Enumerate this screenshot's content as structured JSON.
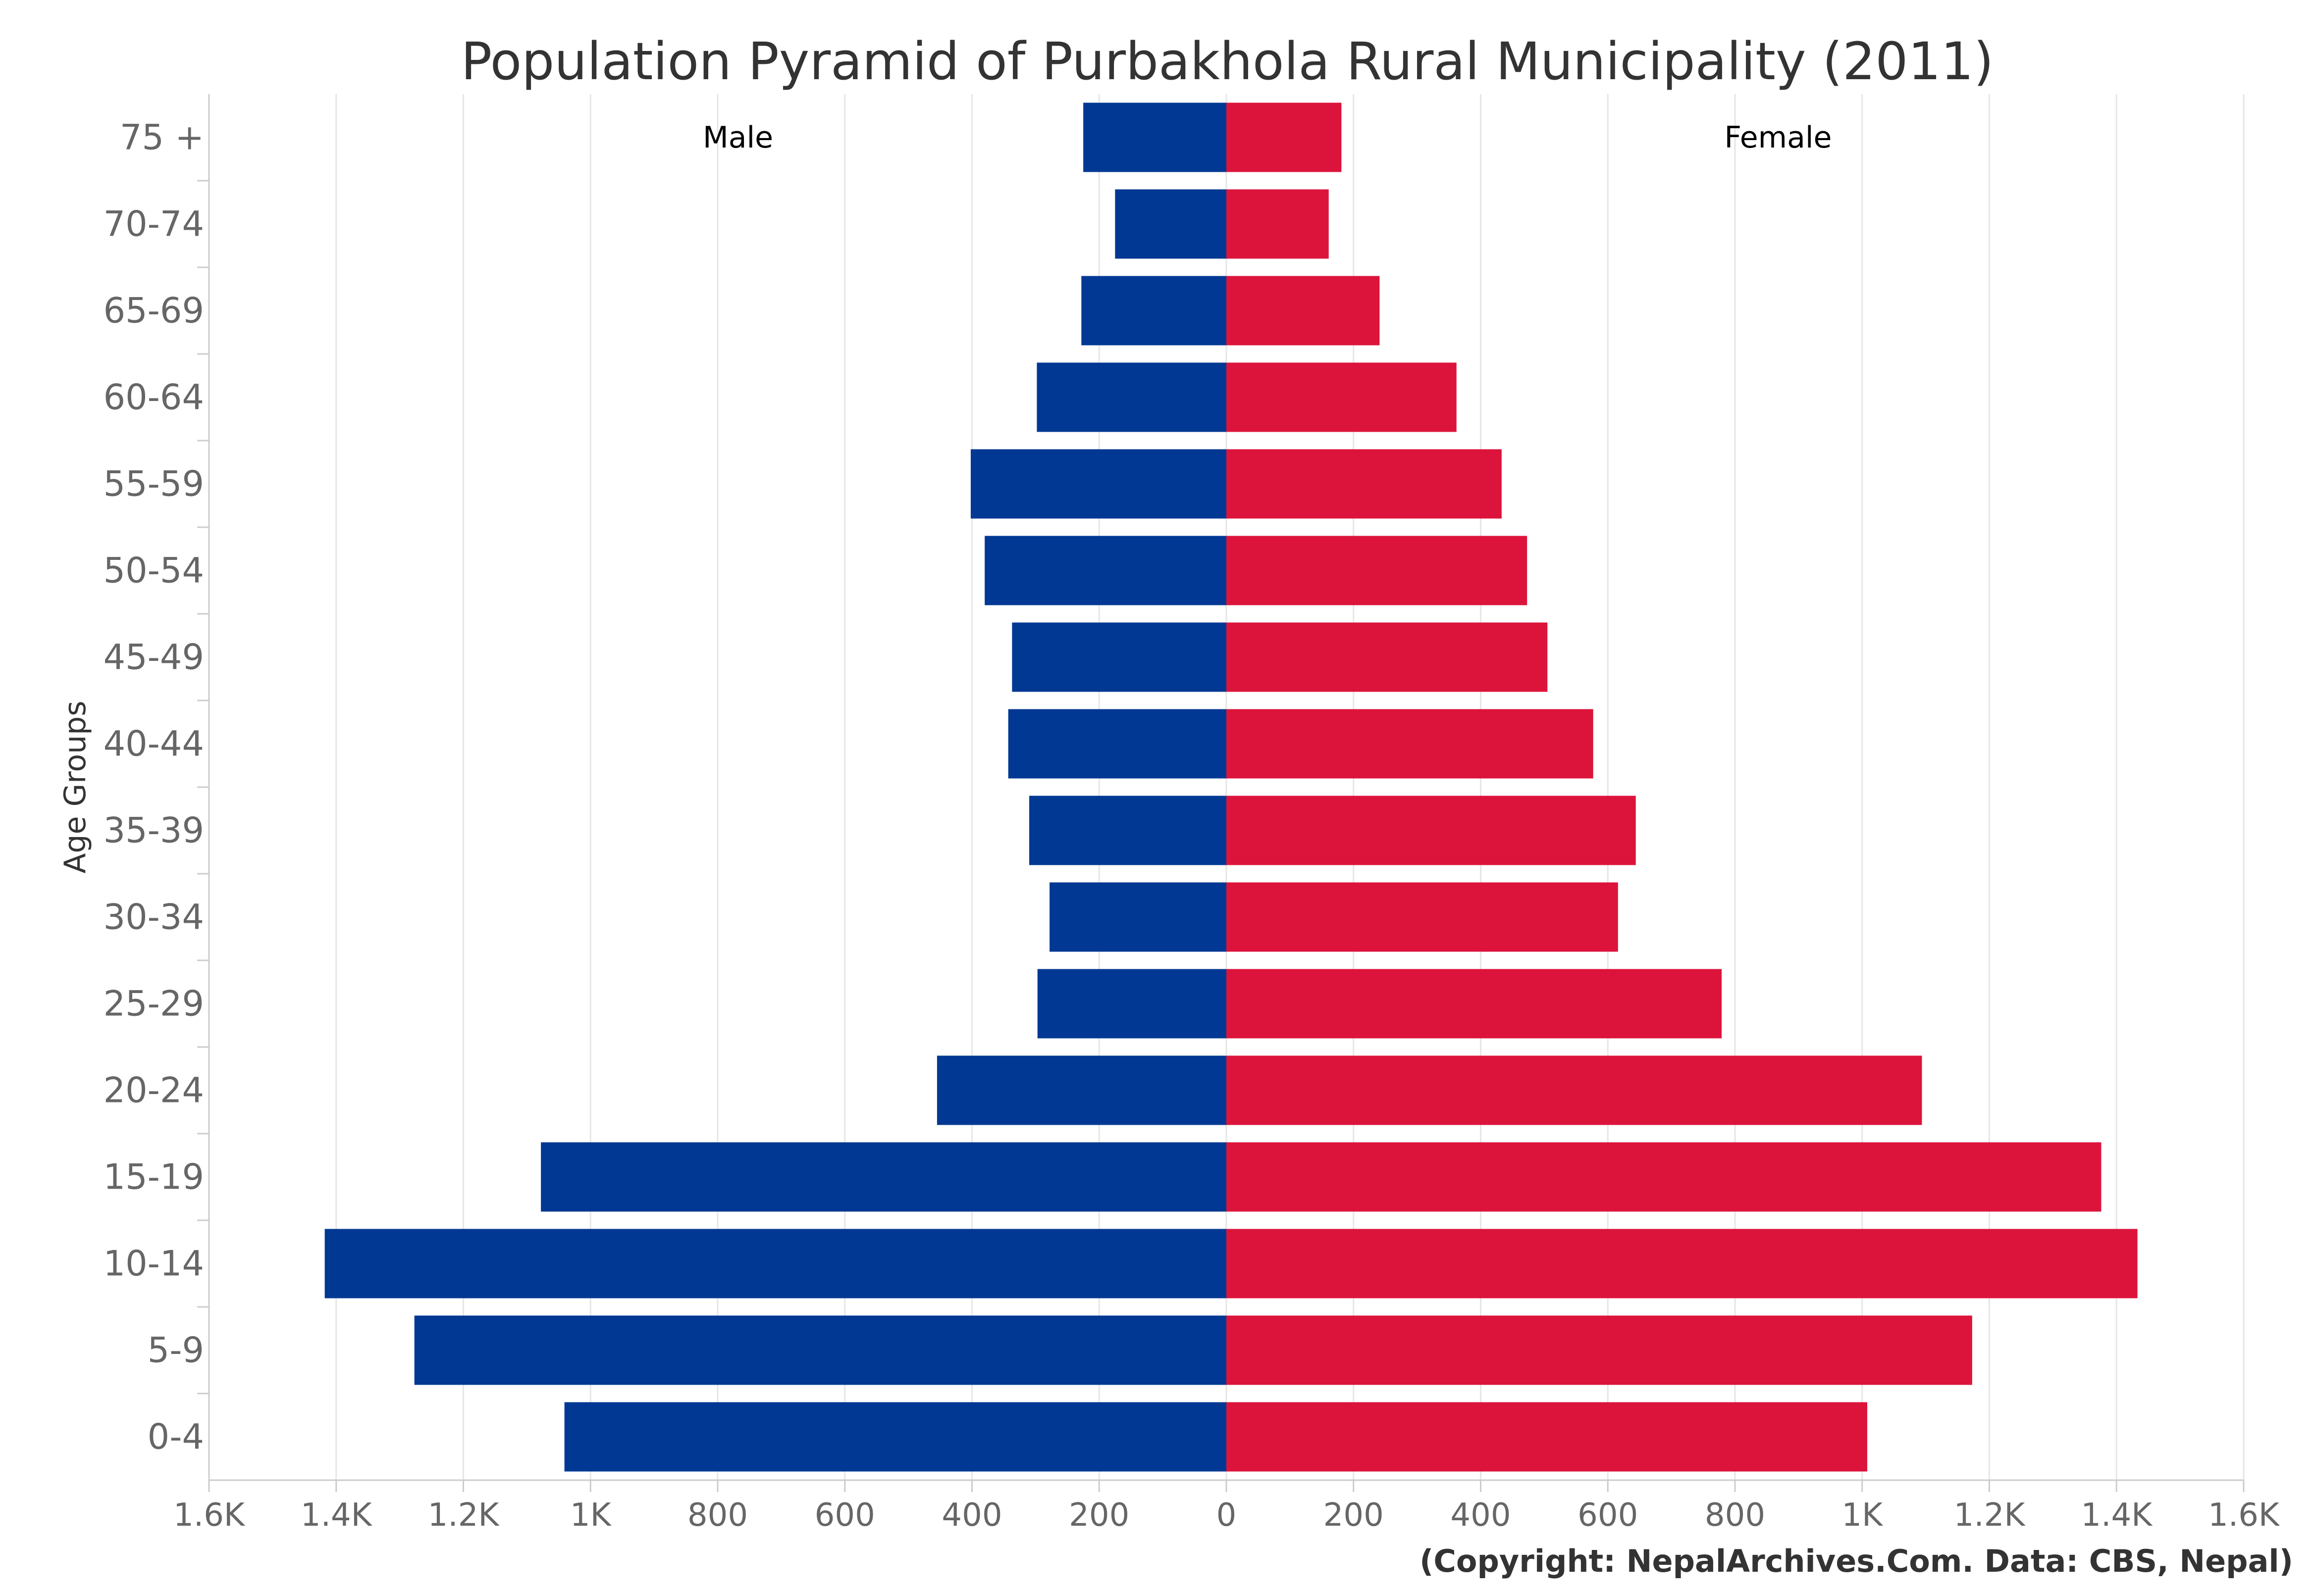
{
  "chart_data": {
    "type": "bar",
    "orientation": "horizontal",
    "title": "Population Pyramid of Purbakhola Rural Municipality (2011)",
    "ylabel": "Age Groups",
    "xlim": [
      -1600,
      1600
    ],
    "x_ticks": [
      {
        "value": -1600,
        "label": "1.6K"
      },
      {
        "value": -1400,
        "label": "1.4K"
      },
      {
        "value": -1200,
        "label": "1.2K"
      },
      {
        "value": -1000,
        "label": "1K"
      },
      {
        "value": -800,
        "label": "800"
      },
      {
        "value": -600,
        "label": "600"
      },
      {
        "value": -400,
        "label": "400"
      },
      {
        "value": -200,
        "label": "200"
      },
      {
        "value": 0,
        "label": "0"
      },
      {
        "value": 200,
        "label": "200"
      },
      {
        "value": 400,
        "label": "400"
      },
      {
        "value": 600,
        "label": "600"
      },
      {
        "value": 800,
        "label": "800"
      },
      {
        "value": 1000,
        "label": "1K"
      },
      {
        "value": 1200,
        "label": "1.2K"
      },
      {
        "value": 1400,
        "label": "1.4K"
      },
      {
        "value": 1600,
        "label": "1.6K"
      }
    ],
    "categories": [
      "75 +",
      "70-74",
      "65-69",
      "60-64",
      "55-59",
      "50-54",
      "45-49",
      "40-44",
      "35-39",
      "30-34",
      "25-29",
      "20-24",
      "15-19",
      "10-14",
      "5-9",
      "0-4"
    ],
    "series": [
      {
        "name": "Male",
        "color": "#003893",
        "direction": "left",
        "values": [
          225,
          175,
          228,
          298,
          402,
          380,
          337,
          343,
          310,
          278,
          297,
          455,
          1078,
          1418,
          1277,
          1041
        ]
      },
      {
        "name": "Female",
        "color": "#dc143c",
        "direction": "right",
        "values": [
          181,
          161,
          241,
          362,
          433,
          473,
          505,
          577,
          644,
          616,
          779,
          1094,
          1376,
          1433,
          1173,
          1008
        ]
      }
    ],
    "grid": true,
    "legend": "none"
  },
  "credit": "(Copyright: NepalArchives.Com. Data: CBS, Nepal)"
}
